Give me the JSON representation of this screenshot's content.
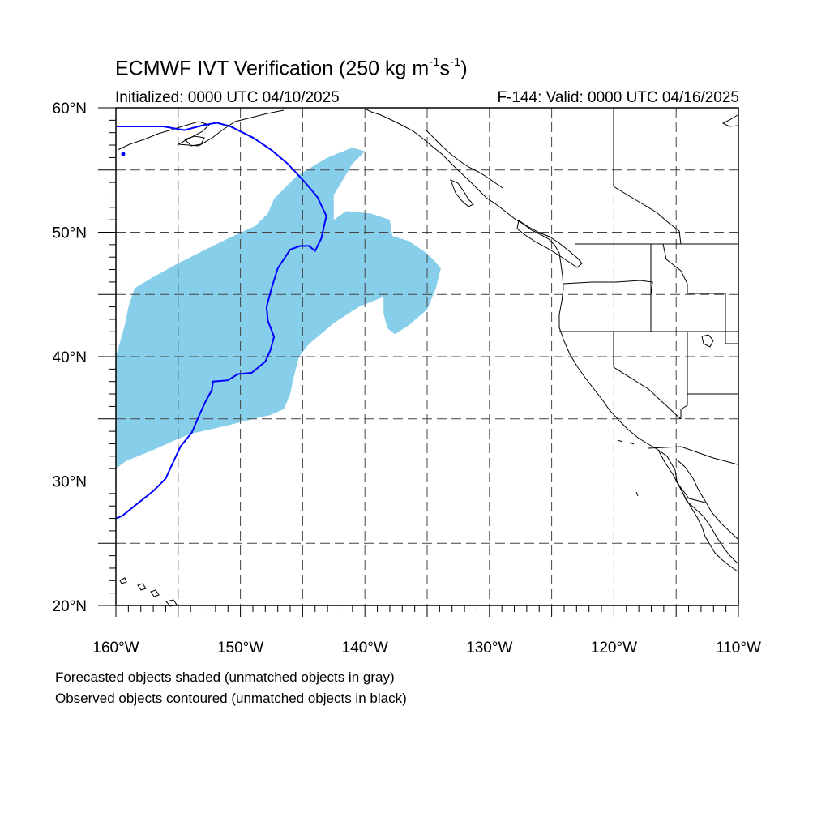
{
  "title": {
    "main": "ECMWF IVT Verification (250 kg m",
    "sup1": "-1",
    "mid": "s",
    "sup2": "-1",
    "close": ")"
  },
  "subtitle": {
    "initialized": "Initialized: 0000 UTC 04/10/2025",
    "valid": "F-144: Valid: 0000 UTC 04/16/2025"
  },
  "map": {
    "lon_range": [
      -160,
      -110
    ],
    "lat_range": [
      20,
      60
    ],
    "lat_labels": [
      "20°N",
      "30°N",
      "40°N",
      "50°N",
      "60°N"
    ],
    "lon_labels": [
      "160°W",
      "150°W",
      "140°W",
      "130°W",
      "120°W",
      "110°W"
    ],
    "gridlines": "dashed every 5 degrees",
    "forecast_fill_color": "#87ceeb",
    "observed_contour_color": "#0000ff",
    "forecast_object": [
      [
        -160.0,
        31.0
      ],
      [
        -159.2,
        31.6
      ],
      [
        -157.0,
        32.5
      ],
      [
        -155.2,
        33.3
      ],
      [
        -154.0,
        33.8
      ],
      [
        -152.2,
        34.2
      ],
      [
        -150.5,
        34.6
      ],
      [
        -149.0,
        35.0
      ],
      [
        -147.6,
        35.3
      ],
      [
        -146.5,
        35.8
      ],
      [
        -146.0,
        37.0
      ],
      [
        -145.8,
        38.0
      ],
      [
        -145.3,
        40.0
      ],
      [
        -144.5,
        41.0
      ],
      [
        -142.5,
        42.7
      ],
      [
        -140.5,
        44.0
      ],
      [
        -138.5,
        44.8
      ],
      [
        -138.5,
        43.5
      ],
      [
        -138.2,
        42.3
      ],
      [
        -137.6,
        41.8
      ],
      [
        -136.5,
        42.5
      ],
      [
        -135.0,
        43.8
      ],
      [
        -134.3,
        45.5
      ],
      [
        -133.9,
        47.1
      ],
      [
        -134.5,
        47.8
      ],
      [
        -135.3,
        48.5
      ],
      [
        -136.5,
        49.3
      ],
      [
        -137.8,
        49.7
      ],
      [
        -138.0,
        51.0
      ],
      [
        -139.5,
        51.5
      ],
      [
        -141.5,
        51.7
      ],
      [
        -142.5,
        51.0
      ],
      [
        -142.5,
        53.0
      ],
      [
        -141.0,
        55.5
      ],
      [
        -140.0,
        56.5
      ],
      [
        -141.0,
        56.8
      ],
      [
        -143.0,
        56.0
      ],
      [
        -145.5,
        54.5
      ],
      [
        -147.3,
        52.7
      ],
      [
        -147.8,
        51.5
      ],
      [
        -148.8,
        50.5
      ],
      [
        -151.0,
        49.5
      ],
      [
        -153.0,
        48.5
      ],
      [
        -155.0,
        47.5
      ],
      [
        -157.0,
        46.4
      ],
      [
        -158.5,
        45.5
      ],
      [
        -159.0,
        44.0
      ],
      [
        -159.3,
        42.5
      ],
      [
        -160.0,
        40.0
      ]
    ],
    "observed_contour": [
      [
        -160.0,
        27.0
      ],
      [
        -159.5,
        27.2
      ],
      [
        -158.5,
        28.0
      ],
      [
        -157.0,
        29.2
      ],
      [
        -156.0,
        30.2
      ],
      [
        -155.5,
        31.3
      ],
      [
        -154.8,
        32.8
      ],
      [
        -153.9,
        33.9
      ],
      [
        -153.3,
        35.3
      ],
      [
        -152.8,
        36.4
      ],
      [
        -152.3,
        37.3
      ],
      [
        -152.2,
        38.0
      ],
      [
        -151.0,
        38.1
      ],
      [
        -150.2,
        38.6
      ],
      [
        -149.1,
        38.7
      ],
      [
        -148.0,
        39.6
      ],
      [
        -147.6,
        40.5
      ],
      [
        -147.3,
        41.6
      ],
      [
        -147.8,
        42.9
      ],
      [
        -147.9,
        44.0
      ],
      [
        -147.5,
        45.5
      ],
      [
        -147.0,
        47.1
      ],
      [
        -146.0,
        48.6
      ],
      [
        -145.2,
        48.9
      ],
      [
        -144.5,
        48.9
      ],
      [
        -144.0,
        48.5
      ],
      [
        -143.5,
        49.5
      ],
      [
        -143.1,
        51.3
      ],
      [
        -143.8,
        52.8
      ],
      [
        -144.8,
        54.0
      ],
      [
        -146.2,
        55.5
      ],
      [
        -147.5,
        56.6
      ],
      [
        -149.0,
        57.6
      ],
      [
        -150.8,
        58.5
      ],
      [
        -151.9,
        58.8
      ],
      [
        -153.0,
        58.6
      ],
      [
        -154.5,
        58.2
      ],
      [
        -156.2,
        58.5
      ],
      [
        -157.8,
        58.5
      ],
      [
        -160.0,
        58.5
      ]
    ]
  },
  "captions": {
    "line1": "Forecasted objects shaded (unmatched objects in gray)",
    "line2": "Observed objects contoured (unmatched objects in black)"
  }
}
